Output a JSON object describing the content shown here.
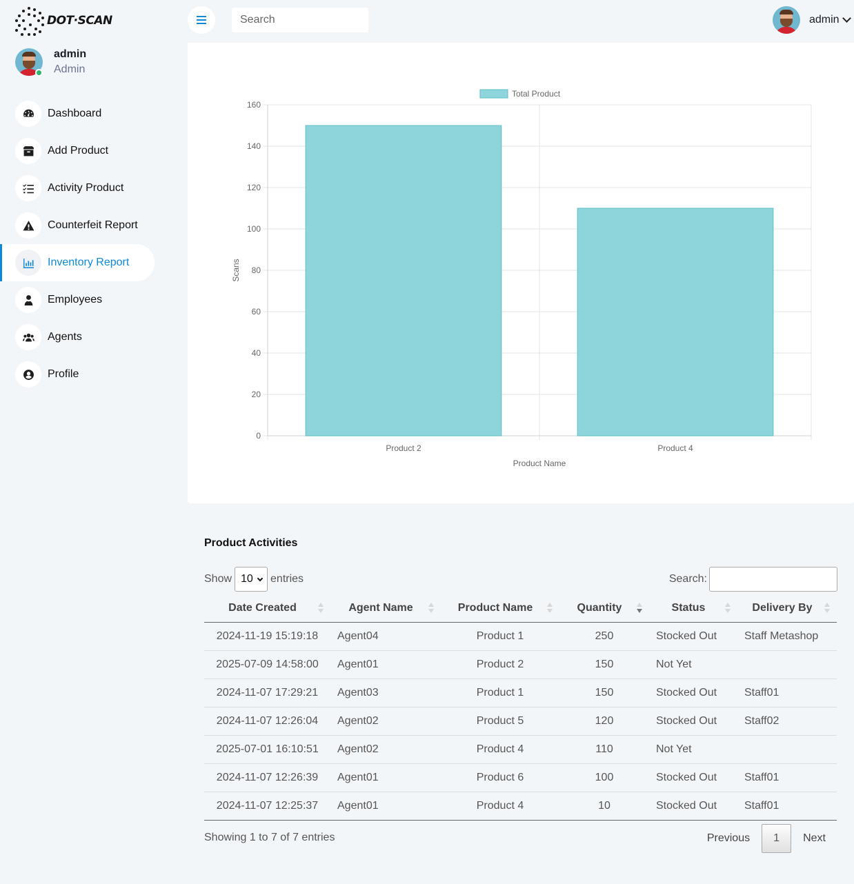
{
  "brand": {
    "name": "DOT·SCAN"
  },
  "header": {
    "search_placeholder": "Search",
    "user_name": "admin"
  },
  "sidebar": {
    "user": {
      "name": "admin",
      "role": "Admin"
    },
    "items": [
      {
        "label": "Dashboard",
        "icon": "speedometer-icon",
        "active": false
      },
      {
        "label": "Add Product",
        "icon": "box-icon",
        "active": false
      },
      {
        "label": "Activity Product",
        "icon": "list-check-icon",
        "active": false
      },
      {
        "label": "Counterfeit Report",
        "icon": "warning-icon",
        "active": false
      },
      {
        "label": "Inventory Report",
        "icon": "bar-chart-icon",
        "active": true
      },
      {
        "label": "Employees",
        "icon": "user-tie-icon",
        "active": false
      },
      {
        "label": "Agents",
        "icon": "users-icon",
        "active": false
      },
      {
        "label": "Profile",
        "icon": "user-circle-icon",
        "active": false
      }
    ]
  },
  "chart_data": {
    "type": "bar",
    "categories": [
      "Product 2",
      "Product 4"
    ],
    "series": [
      {
        "name": "Total Product",
        "values": [
          150,
          110
        ]
      }
    ],
    "xlabel": "Product Name",
    "ylabel": "Scans",
    "ylim": [
      0,
      160
    ],
    "yticks": [
      0,
      20,
      40,
      60,
      80,
      100,
      120,
      140,
      160
    ],
    "grid": true,
    "legend": "top",
    "colors": {
      "fill": "#8dd5da",
      "stroke": "#5bbfc6"
    }
  },
  "table": {
    "title": "Product Activities",
    "show_label": "Show",
    "entries_label": "entries",
    "page_length": "10",
    "search_label": "Search:",
    "columns": [
      "Date Created",
      "Agent Name",
      "Product Name",
      "Quantity",
      "Status",
      "Delivery By"
    ],
    "rows": [
      [
        "2024-11-19 15:19:18",
        "Agent04",
        "Product 1",
        "250",
        "Stocked Out",
        "Staff Metashop"
      ],
      [
        "2025-07-09 14:58:00",
        "Agent01",
        "Product 2",
        "150",
        "Not Yet",
        ""
      ],
      [
        "2024-11-07 17:29:21",
        "Agent03",
        "Product 1",
        "150",
        "Stocked Out",
        "Staff01"
      ],
      [
        "2024-11-07 12:26:04",
        "Agent02",
        "Product 5",
        "120",
        "Stocked Out",
        "Staff02"
      ],
      [
        "2025-07-01 16:10:51",
        "Agent02",
        "Product 4",
        "110",
        "Not Yet",
        ""
      ],
      [
        "2024-11-07 12:26:39",
        "Agent01",
        "Product 6",
        "100",
        "Stocked Out",
        "Staff01"
      ],
      [
        "2024-11-07 12:25:37",
        "Agent01",
        "Product 4",
        "10",
        "Stocked Out",
        "Staff01"
      ]
    ],
    "info": "Showing 1 to 7 of 7 entries",
    "pagination": {
      "previous": "Previous",
      "current": "1",
      "next": "Next"
    }
  }
}
